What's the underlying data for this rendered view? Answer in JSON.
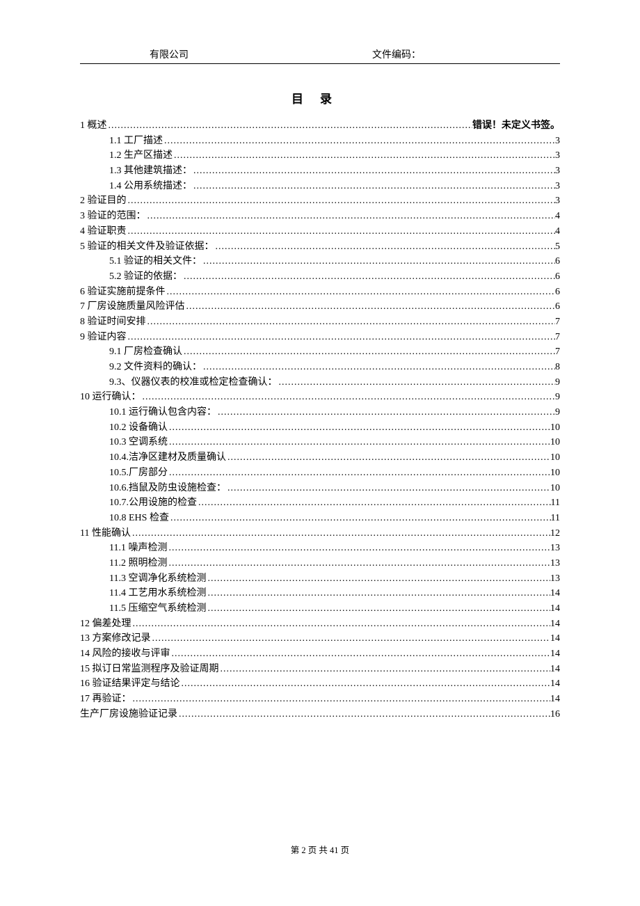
{
  "header": {
    "company": "有限公司",
    "doc_code_label": "文件编码："
  },
  "toc_title": "目录",
  "error_text": "错误！未定义书签。",
  "items": [
    {
      "level": 1,
      "label": "1 概述",
      "page": "",
      "error": true
    },
    {
      "level": 2,
      "label": "1.1 工厂描述",
      "page": "3"
    },
    {
      "level": 2,
      "label": "1.2 生产区描述",
      "page": "3"
    },
    {
      "level": 2,
      "label": "1.3 其他建筑描述：",
      "page": "3"
    },
    {
      "level": 2,
      "label": "1.4 公用系统描述：",
      "page": "3"
    },
    {
      "level": 1,
      "label": "2 验证目的",
      "page": "3"
    },
    {
      "level": 1,
      "label": "3 验证的范围：",
      "page": "4"
    },
    {
      "level": 1,
      "label": "4 验证职责",
      "page": "4"
    },
    {
      "level": 1,
      "label": "5 验证的相关文件及验证依据：",
      "page": "5"
    },
    {
      "level": 2,
      "label": "5.1  验证的相关文件：",
      "page": "6"
    },
    {
      "level": 2,
      "label": "5.2  验证的依据：",
      "page": "6"
    },
    {
      "level": 1,
      "label": "6 验证实施前提条件",
      "page": "6"
    },
    {
      "level": 1,
      "label": "7 厂房设施质量风险评估",
      "page": "6"
    },
    {
      "level": 1,
      "label": "8 验证时间安排",
      "page": "7"
    },
    {
      "level": 1,
      "label": "9 验证内容",
      "page": "7"
    },
    {
      "level": 2,
      "label": "9.1 厂房检查确认",
      "page": "7"
    },
    {
      "level": 2,
      "label": "9.2  文件资料的确认：",
      "page": "8"
    },
    {
      "level": 2,
      "label": "9.3、仪器仪表的校准或检定检查确认：",
      "page": "9"
    },
    {
      "level": 1,
      "label": "10  运行确认：",
      "page": "9"
    },
    {
      "level": 2,
      "label": "10.1 运行确认包含内容：",
      "page": "9"
    },
    {
      "level": 2,
      "label": "10.2  设备确认",
      "page": "10"
    },
    {
      "level": 2,
      "label": "10.3 空调系统",
      "page": "10"
    },
    {
      "level": 2,
      "label": "10.4.洁净区建材及质量确认",
      "page": "10"
    },
    {
      "level": 2,
      "label": "10.5.厂房部分",
      "page": "10"
    },
    {
      "level": 2,
      "label": "10.6.挡鼠及防虫设施检查：",
      "page": "10"
    },
    {
      "level": 2,
      "label": "10.7.公用设施的检查",
      "page": "11"
    },
    {
      "level": 2,
      "label": "10.8 EHS 检查",
      "page": "11"
    },
    {
      "level": 1,
      "label": "11  性能确认",
      "page": "12"
    },
    {
      "level": 2,
      "label": "11.1 噪声检测",
      "page": "13"
    },
    {
      "level": 2,
      "label": "11.2  照明检测",
      "page": "13"
    },
    {
      "level": 2,
      "label": "11.3  空调净化系统检测",
      "page": "13"
    },
    {
      "level": 2,
      "label": "11.4  工艺用水系统检测",
      "page": "14"
    },
    {
      "level": 2,
      "label": "11.5  压缩空气系统检测",
      "page": "14"
    },
    {
      "level": 1,
      "label": "12  偏差处理",
      "page": "14"
    },
    {
      "level": 1,
      "label": "13  方案修改记录",
      "page": "14"
    },
    {
      "level": 1,
      "label": "14  风险的接收与评审",
      "page": "14"
    },
    {
      "level": 1,
      "label": "15  拟订日常监测程序及验证周期",
      "page": "14"
    },
    {
      "level": 1,
      "label": "16  验证结果评定与结论",
      "page": "14"
    },
    {
      "level": 1,
      "label": "17  再验证：",
      "page": "14"
    },
    {
      "level": 1,
      "label": "生产厂房设施验证记录",
      "page": "16"
    }
  ],
  "footer": {
    "text": "第 2 页 共 41 页"
  }
}
